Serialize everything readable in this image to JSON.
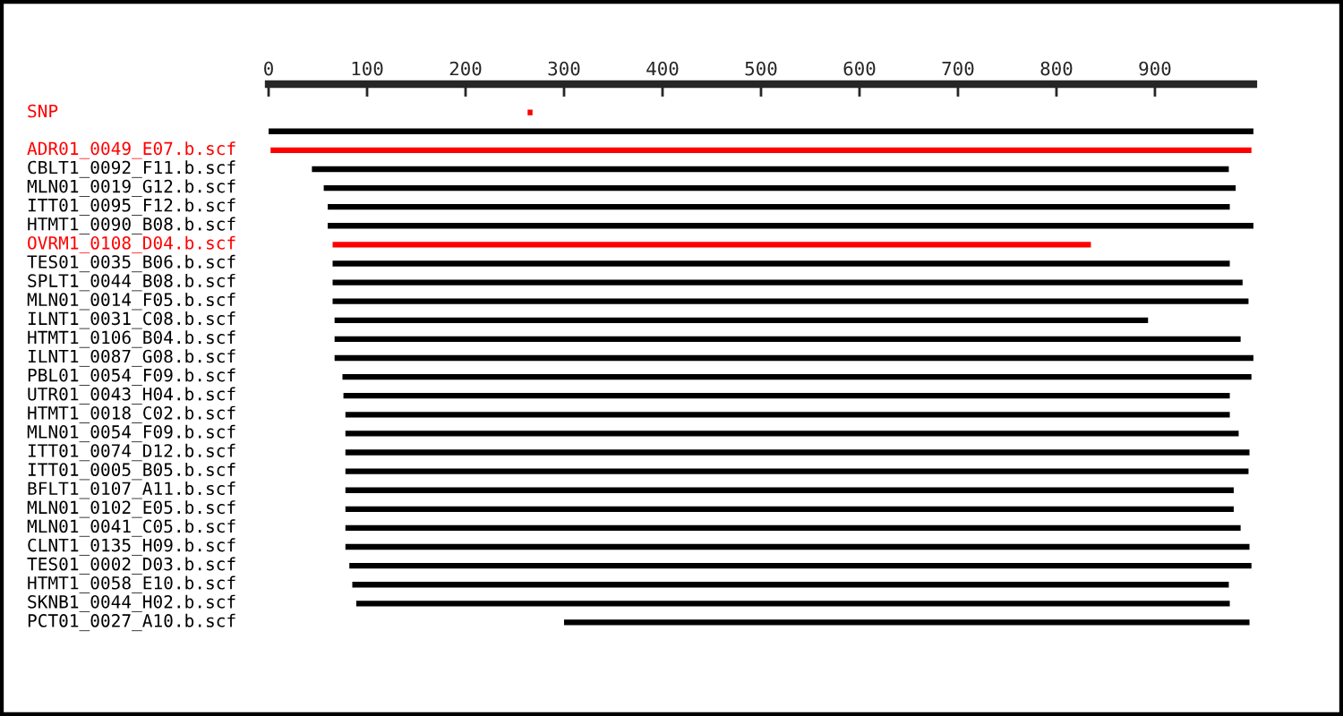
{
  "chart_data": {
    "type": "bar",
    "orientation": "horizontal",
    "categories": [
      "SNP",
      null,
      "ADR01_0049_E07.b.scf",
      "CBLT1_0092_F11.b.scf",
      "MLN01_0019_G12.b.scf",
      "ITT01_0095_F12.b.scf",
      "HTMT1_0090_B08.b.scf",
      "OVRM1_0108_D04.b.scf",
      "TES01_0035_B06.b.scf",
      "SPLT1_0044_B08.b.scf",
      "MLN01_0014_F05.b.scf",
      "ILNT1_0031_C08.b.scf",
      "HTMT1_0106_B04.b.scf",
      "ILNT1_0087_G08.b.scf",
      "PBL01_0054_F09.b.scf",
      "UTR01_0043_H04.b.scf",
      "HTMT1_0018_C02.b.scf",
      "MLN01_0054_F09.b.scf",
      "ITT01_0074_D12.b.scf",
      "ITT01_0005_B05.b.scf",
      "BFLT1_0107_A11.b.scf",
      "MLN01_0102_E05.b.scf",
      "MLN01_0041_C05.b.scf",
      "CLNT1_0135_H09.b.scf",
      "TES01_0002_D03.b.scf",
      "HTMT1_0058_E10.b.scf",
      "SKNB1_0044_H02.b.scf",
      "PCT01_0027_A10.b.scf"
    ],
    "base": [
      263,
      0,
      2,
      44,
      56,
      60,
      60,
      65,
      65,
      65,
      65,
      67,
      67,
      67,
      75,
      76,
      78,
      78,
      78,
      78,
      78,
      78,
      78,
      78,
      82,
      85,
      89,
      300
    ],
    "values": [
      5,
      1000,
      996,
      931,
      926,
      916,
      940,
      770,
      911,
      924,
      930,
      826,
      920,
      933,
      923,
      900,
      898,
      907,
      918,
      917,
      902,
      902,
      909,
      918,
      916,
      890,
      887,
      696
    ],
    "colors": [
      "#ff0000",
      "#000000",
      "#ff0000",
      "#000000",
      "#000000",
      "#000000",
      "#000000",
      "#ff0000",
      "#000000",
      "#000000",
      "#000000",
      "#000000",
      "#000000",
      "#000000",
      "#000000",
      "#000000",
      "#000000",
      "#000000",
      "#000000",
      "#000000",
      "#000000",
      "#000000",
      "#000000",
      "#000000",
      "#000000",
      "#000000",
      "#000000",
      "#000000"
    ],
    "xlim": [
      0,
      1000
    ],
    "xticks": [
      0,
      100,
      200,
      300,
      400,
      500,
      600,
      700,
      800,
      900
    ],
    "grid": false,
    "legend": false
  }
}
